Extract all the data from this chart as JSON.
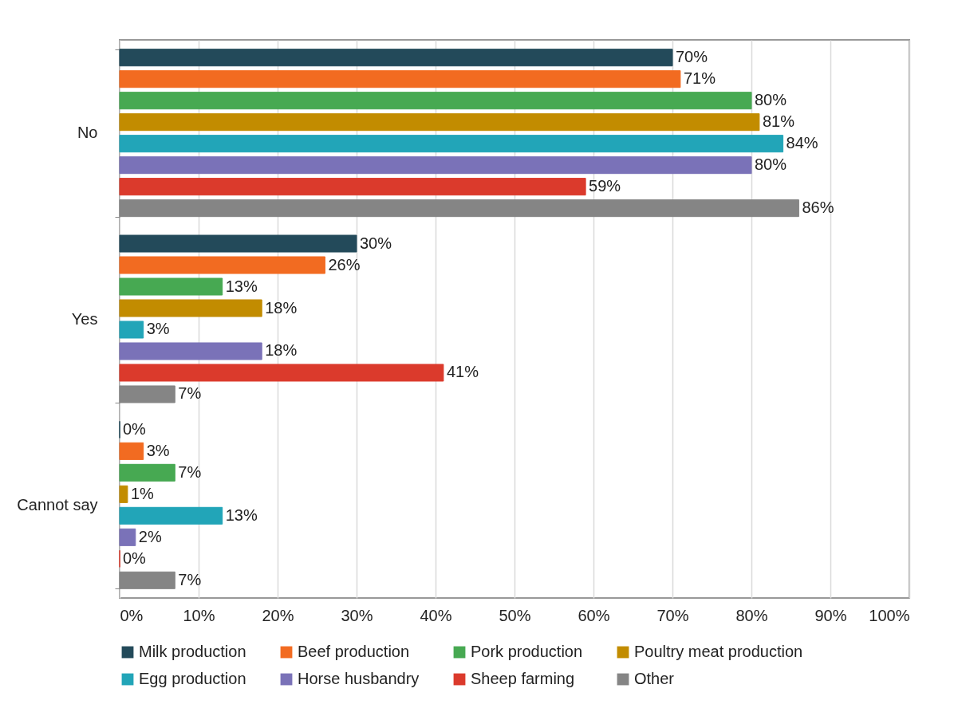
{
  "chart_data": {
    "type": "bar",
    "orientation": "horizontal",
    "categories": [
      "No",
      "Yes",
      "Cannot say"
    ],
    "series": [
      {
        "name": "Milk production",
        "color": "#234a5a",
        "values": [
          70,
          30,
          0
        ],
        "value_labels": [
          "70%",
          "30%",
          "0%"
        ]
      },
      {
        "name": "Beef production",
        "color": "#f26b21",
        "values": [
          71,
          26,
          3
        ],
        "value_labels": [
          "71%",
          "26%",
          "3%"
        ]
      },
      {
        "name": "Pork production",
        "color": "#47a952",
        "values": [
          80,
          13,
          7
        ],
        "value_labels": [
          "80%",
          "13%",
          "7%"
        ]
      },
      {
        "name": "Poultry meat production",
        "color": "#c28c00",
        "values": [
          81,
          18,
          1
        ],
        "value_labels": [
          "81%",
          "18%",
          "1%"
        ]
      },
      {
        "name": "Egg production",
        "color": "#22a5b8",
        "values": [
          84,
          3,
          13
        ],
        "value_labels": [
          "84%",
          "3%",
          "13%"
        ]
      },
      {
        "name": "Horse husbandry",
        "color": "#7a72b8",
        "values": [
          80,
          18,
          2
        ],
        "value_labels": [
          "80%",
          "18%",
          "2%"
        ]
      },
      {
        "name": "Sheep farming",
        "color": "#db3a2c",
        "values": [
          59,
          41,
          0
        ],
        "value_labels": [
          "59%",
          "41%",
          "0%"
        ]
      },
      {
        "name": "Other",
        "color": "#858585",
        "values": [
          86,
          7,
          7
        ],
        "value_labels": [
          "86%",
          "7%",
          "7%"
        ]
      }
    ],
    "xlim": [
      0,
      100
    ],
    "xticks": [
      {
        "value": 0,
        "label": "0%"
      },
      {
        "value": 10,
        "label": "10%"
      },
      {
        "value": 20,
        "label": "20%"
      },
      {
        "value": 30,
        "label": "30%"
      },
      {
        "value": 40,
        "label": "40%"
      },
      {
        "value": 50,
        "label": "50%"
      },
      {
        "value": 60,
        "label": "60%"
      },
      {
        "value": 70,
        "label": "70%"
      },
      {
        "value": 80,
        "label": "80%"
      },
      {
        "value": 90,
        "label": "90%"
      },
      {
        "value": 100,
        "label": "100%"
      }
    ],
    "grid": "x",
    "legend": "bottom"
  }
}
